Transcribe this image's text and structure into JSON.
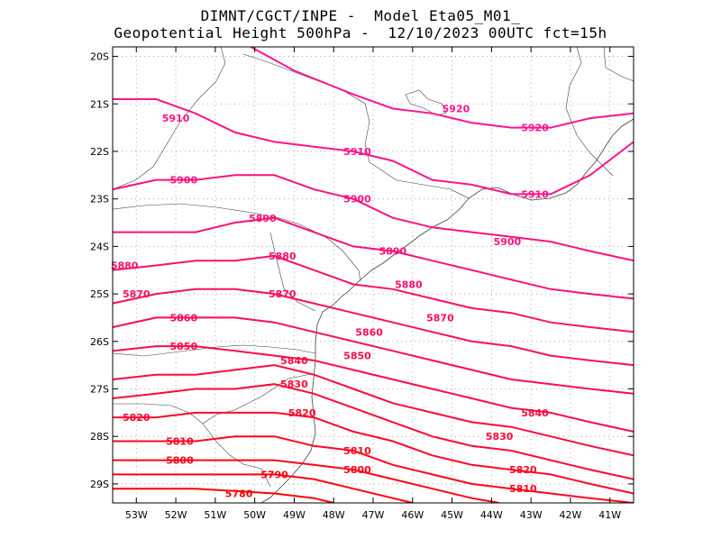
{
  "title": {
    "line1": "DIMNT/CGCT/INPE -  Model Eta05_M01_",
    "line2": "Geopotential Height 500hPa -  12/10/2023 00UTC fct=15h"
  },
  "colors": {
    "frame": "#000000",
    "grid": "#9a9a9a",
    "coast": "#404040",
    "high": "#ff1493",
    "low": "#ff0000"
  },
  "axes": {
    "lon_range": [
      -53.6,
      -40.4
    ],
    "lat_range": [
      -29.4,
      -19.8
    ],
    "x_ticks": [
      "53W",
      "52W",
      "51W",
      "50W",
      "49W",
      "48W",
      "47W",
      "46W",
      "45W",
      "44W",
      "43W",
      "42W",
      "41W"
    ],
    "y_ticks": [
      "20S",
      "21S",
      "22S",
      "23S",
      "24S",
      "25S",
      "26S",
      "27S",
      "28S",
      "29S"
    ],
    "grid": "dotted"
  },
  "map_data": {
    "field": "geopotential height 500hPa",
    "units": "gpm",
    "contour_interval": 10,
    "contours": [
      {
        "value": 5920,
        "label": "5920",
        "label_lon": -44.9,
        "label_lat": -21.1
      },
      {
        "value": 5910,
        "label": "5910",
        "label_lon": -52.0,
        "label_lat": -21.3
      },
      {
        "value": 5900,
        "label": "5900",
        "label_lon": -51.8,
        "label_lat": -22.6
      },
      {
        "value": 5890,
        "label": "5890",
        "label_lon": -49.8,
        "label_lat": -23.4
      },
      {
        "value": 5880,
        "label": "5880",
        "label_lon": -53.3,
        "label_lat": -24.4
      },
      {
        "value": 5870,
        "label": "5870",
        "label_lon": -53.0,
        "label_lat": -25.0
      },
      {
        "value": 5860,
        "label": "5860",
        "label_lon": -51.8,
        "label_lat": -25.5
      },
      {
        "value": 5850,
        "label": "5850",
        "label_lon": -51.8,
        "label_lat": -26.1
      },
      {
        "value": 5840,
        "label": "5840",
        "label_lon": -49.0,
        "label_lat": -26.4
      },
      {
        "value": 5830,
        "label": "5830",
        "label_lon": -49.0,
        "label_lat": -26.9
      },
      {
        "value": 5820,
        "label": "5820",
        "label_lon": -53.0,
        "label_lat": -27.6
      },
      {
        "value": 5810,
        "label": "5810",
        "label_lon": -51.9,
        "label_lat": -28.1
      },
      {
        "value": 5800,
        "label": "5800",
        "label_lon": -51.9,
        "label_lat": -28.5
      },
      {
        "value": 5790,
        "label": "5790",
        "label_lon": -49.5,
        "label_lat": -28.8
      },
      {
        "value": 5780,
        "label": "5780",
        "label_lon": -50.4,
        "label_lat": -29.2
      }
    ],
    "extra_labels": [
      {
        "label": "5920",
        "lon": -42.9,
        "lat": -21.5
      },
      {
        "label": "5910",
        "lon": -47.4,
        "lat": -22.0
      },
      {
        "label": "5910",
        "lon": -42.9,
        "lat": -22.9
      },
      {
        "label": "5900",
        "lon": -47.4,
        "lat": -23.0
      },
      {
        "label": "5900",
        "lon": -43.6,
        "lat": -23.9
      },
      {
        "label": "5890",
        "lon": -46.5,
        "lat": -24.1
      },
      {
        "label": "5880",
        "lon": -49.3,
        "lat": -24.2
      },
      {
        "label": "5880",
        "lon": -46.1,
        "lat": -24.8
      },
      {
        "label": "5870",
        "lon": -49.3,
        "lat": -25.0
      },
      {
        "label": "5870",
        "lon": -45.3,
        "lat": -25.5
      },
      {
        "label": "5860",
        "lon": -47.1,
        "lat": -25.8
      },
      {
        "label": "5850",
        "lon": -47.4,
        "lat": -26.3
      },
      {
        "label": "5840",
        "lon": -42.9,
        "lat": -27.5
      },
      {
        "label": "5830",
        "lon": -43.8,
        "lat": -28.0
      },
      {
        "label": "5820",
        "lon": -48.8,
        "lat": -27.5
      },
      {
        "label": "5820",
        "lon": -43.2,
        "lat": -28.7
      },
      {
        "label": "5810",
        "lon": -47.4,
        "lat": -28.3
      },
      {
        "label": "5810",
        "lon": -43.2,
        "lat": -29.1
      },
      {
        "label": "5800",
        "lon": -47.4,
        "lat": -28.7
      }
    ]
  }
}
